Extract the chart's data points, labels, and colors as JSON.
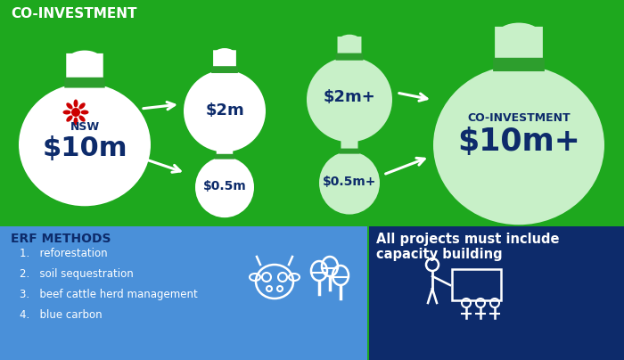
{
  "bg_top": "#1ea81e",
  "bg_bottom_left": "#4a90d9",
  "bg_bottom_right": "#0d2b6b",
  "top_label": "CO-INVESTMENT",
  "bag_nsw_amount": "$10m",
  "bag_nsw_label": "NSW",
  "bag_big_upper": "$2m",
  "bag_small_upper": "$2m+",
  "bag_big_lower": "$0.5m",
  "bag_small_lower": "$0.5m+",
  "bag_right_label": "CO-INVESTMENT",
  "bag_right_amount": "$10m+",
  "erf_title": "ERF METHODS",
  "erf_items": [
    "reforestation",
    "soil sequestration",
    "beef cattle herd management",
    "blue carbon"
  ],
  "capacity_title": "All projects must include\ncapacity building",
  "white": "#ffffff",
  "dark_navy": "#0d2b6b",
  "light_green": "#c8f0c8",
  "green_tie": "#2d9e2d",
  "red": "#cc0000"
}
